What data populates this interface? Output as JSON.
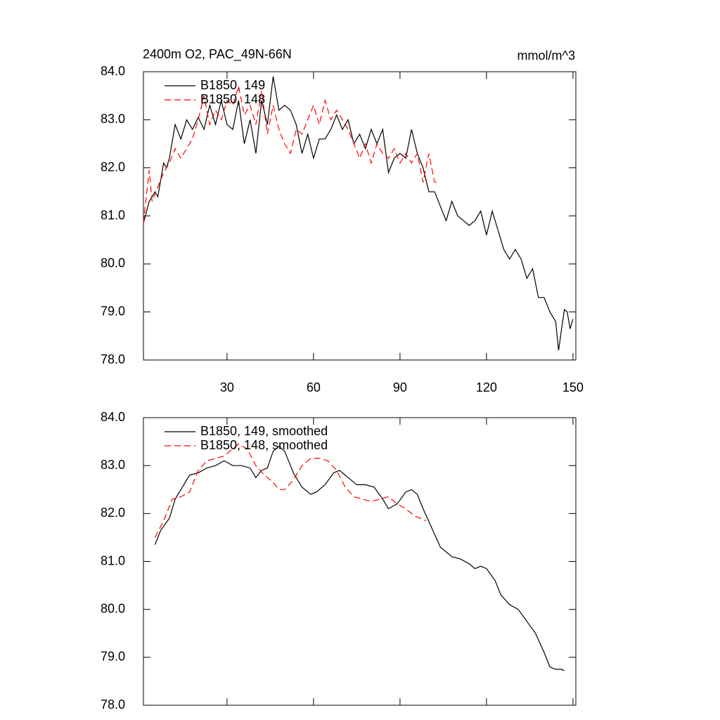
{
  "chart_data": [
    {
      "type": "line",
      "title": "2400m O2, PAC_49N-66N",
      "units": "mmol/m^3",
      "xlim": [
        1,
        151
      ],
      "xticks": [
        30,
        60,
        90,
        120,
        150
      ],
      "xtick_labels": true,
      "ylim": [
        78,
        84
      ],
      "yticks": [
        {
          "value": 78,
          "label": "78.0"
        },
        {
          "value": 79,
          "label": "79.0"
        },
        {
          "value": 80,
          "label": "80.0"
        },
        {
          "value": 81,
          "label": "81.0"
        },
        {
          "value": 82,
          "label": "82.0"
        },
        {
          "value": 83,
          "label": "83.0"
        },
        {
          "value": 84,
          "label": "84.0"
        }
      ],
      "legend": "upper-left",
      "series": [
        {
          "name": "B1850, 149",
          "color": "#000000",
          "dash": false,
          "x": [
            1,
            3,
            5,
            6,
            8,
            9,
            10,
            12,
            14,
            16,
            18,
            20,
            22,
            24,
            26,
            28,
            30,
            32,
            34,
            36,
            38,
            40,
            42,
            44,
            46,
            48,
            50,
            52,
            54,
            56,
            58,
            60,
            62,
            64,
            66,
            68,
            70,
            72,
            74,
            76,
            78,
            80,
            82,
            84,
            86,
            88,
            90,
            92,
            94,
            96,
            98,
            100,
            102,
            104,
            106,
            108,
            110,
            112,
            114,
            116,
            118,
            120,
            122,
            124,
            126,
            128,
            130,
            132,
            134,
            136,
            138,
            140,
            142,
            144,
            145,
            147,
            148,
            149,
            150
          ],
          "values": [
            80.85,
            81.3,
            81.5,
            81.4,
            82.1,
            82.0,
            82.2,
            82.9,
            82.6,
            83.0,
            82.8,
            83.05,
            82.8,
            83.3,
            82.9,
            83.4,
            82.9,
            82.8,
            83.4,
            82.5,
            83.0,
            82.3,
            83.4,
            82.9,
            83.9,
            83.2,
            83.3,
            83.2,
            82.9,
            82.3,
            82.7,
            82.2,
            82.6,
            82.6,
            82.8,
            83.1,
            82.8,
            83.0,
            82.5,
            82.7,
            82.4,
            82.8,
            82.5,
            82.8,
            81.9,
            82.2,
            82.3,
            82.2,
            82.8,
            82.3,
            82.0,
            81.5,
            81.5,
            81.2,
            80.9,
            81.3,
            81.0,
            80.9,
            80.8,
            80.9,
            81.1,
            80.6,
            81.1,
            80.7,
            80.3,
            80.1,
            80.3,
            80.1,
            79.7,
            79.9,
            79.3,
            79.3,
            79.0,
            78.8,
            78.2,
            79.05,
            79.0,
            78.65,
            78.85
          ]
        },
        {
          "name": "B1850, 148",
          "color": "#ff0000",
          "dash": true,
          "x": [
            1,
            3,
            4,
            6,
            8,
            10,
            12,
            14,
            16,
            18,
            20,
            22,
            24,
            26,
            28,
            30,
            32,
            34,
            36,
            38,
            40,
            42,
            44,
            46,
            48,
            50,
            52,
            54,
            56,
            58,
            60,
            62,
            64,
            66,
            68,
            70,
            72,
            74,
            76,
            78,
            80,
            82,
            84,
            86,
            88,
            90,
            92,
            94,
            96,
            98,
            100,
            102,
            103
          ],
          "values": [
            80.85,
            81.95,
            81.3,
            81.6,
            81.9,
            82.1,
            82.4,
            82.2,
            82.4,
            82.6,
            83.0,
            83.5,
            82.9,
            83.2,
            83.0,
            83.4,
            83.3,
            83.7,
            83.1,
            83.3,
            82.9,
            83.6,
            82.7,
            83.3,
            82.8,
            82.5,
            82.3,
            82.8,
            82.7,
            83.0,
            83.3,
            82.9,
            83.4,
            83.0,
            83.2,
            83.0,
            82.8,
            82.5,
            82.2,
            82.5,
            82.1,
            82.5,
            82.3,
            82.2,
            82.4,
            82.1,
            82.3,
            82.1,
            82.3,
            81.7,
            82.3,
            81.7,
            81.7
          ]
        }
      ]
    },
    {
      "type": "line",
      "xlim": [
        1,
        151
      ],
      "xticks": [
        30,
        60,
        90,
        120,
        150
      ],
      "xtick_labels": false,
      "ylim": [
        78,
        84
      ],
      "yticks": [
        {
          "value": 78,
          "label": "78.0"
        },
        {
          "value": 79,
          "label": "79.0"
        },
        {
          "value": 80,
          "label": "80.0"
        },
        {
          "value": 81,
          "label": "81.0"
        },
        {
          "value": 82,
          "label": "82.0"
        },
        {
          "value": 83,
          "label": "83.0"
        },
        {
          "value": 84,
          "label": "84.0"
        }
      ],
      "legend": "upper-left",
      "series": [
        {
          "name": "B1850, 149, smoothed",
          "color": "#000000",
          "dash": false,
          "x": [
            5,
            7,
            10,
            12,
            15,
            17,
            20,
            23,
            26,
            29,
            32,
            35,
            38,
            40,
            42,
            44,
            46,
            48,
            50,
            53,
            56,
            59,
            61,
            64,
            67,
            69,
            72,
            75,
            78,
            81,
            84,
            86,
            89,
            92,
            94,
            96,
            98,
            101,
            104,
            106,
            108,
            111,
            114,
            116,
            118,
            120,
            123,
            125,
            128,
            131,
            134,
            137,
            140,
            142,
            144,
            146,
            147
          ],
          "values": [
            81.35,
            81.65,
            81.9,
            82.3,
            82.6,
            82.8,
            82.85,
            82.95,
            83.0,
            83.1,
            83.0,
            83.0,
            82.95,
            82.75,
            82.9,
            82.95,
            83.3,
            83.4,
            83.3,
            82.85,
            82.55,
            82.4,
            82.45,
            82.6,
            82.85,
            82.9,
            82.75,
            82.6,
            82.6,
            82.55,
            82.3,
            82.1,
            82.2,
            82.45,
            82.5,
            82.4,
            82.1,
            81.7,
            81.3,
            81.2,
            81.1,
            81.05,
            80.95,
            80.85,
            80.9,
            80.85,
            80.6,
            80.3,
            80.1,
            80.0,
            79.75,
            79.5,
            79.1,
            78.8,
            78.75,
            78.75,
            78.72
          ]
        },
        {
          "name": "B1850, 148, smoothed",
          "color": "#ff0000",
          "dash": true,
          "x": [
            5,
            8,
            11,
            14,
            17,
            20,
            23,
            26,
            29,
            32,
            34,
            37,
            40,
            43,
            46,
            48,
            50,
            53,
            56,
            59,
            62,
            65,
            68,
            71,
            74,
            77,
            80,
            83,
            86,
            89,
            92,
            95,
            97,
            99
          ],
          "values": [
            81.5,
            81.85,
            82.3,
            82.35,
            82.45,
            82.9,
            83.1,
            83.15,
            83.2,
            83.35,
            83.45,
            83.35,
            83.0,
            82.8,
            82.65,
            82.5,
            82.5,
            82.7,
            83.0,
            83.15,
            83.15,
            83.1,
            82.9,
            82.55,
            82.35,
            82.3,
            82.25,
            82.3,
            82.35,
            82.2,
            82.1,
            81.95,
            81.9,
            81.85
          ]
        }
      ]
    }
  ]
}
